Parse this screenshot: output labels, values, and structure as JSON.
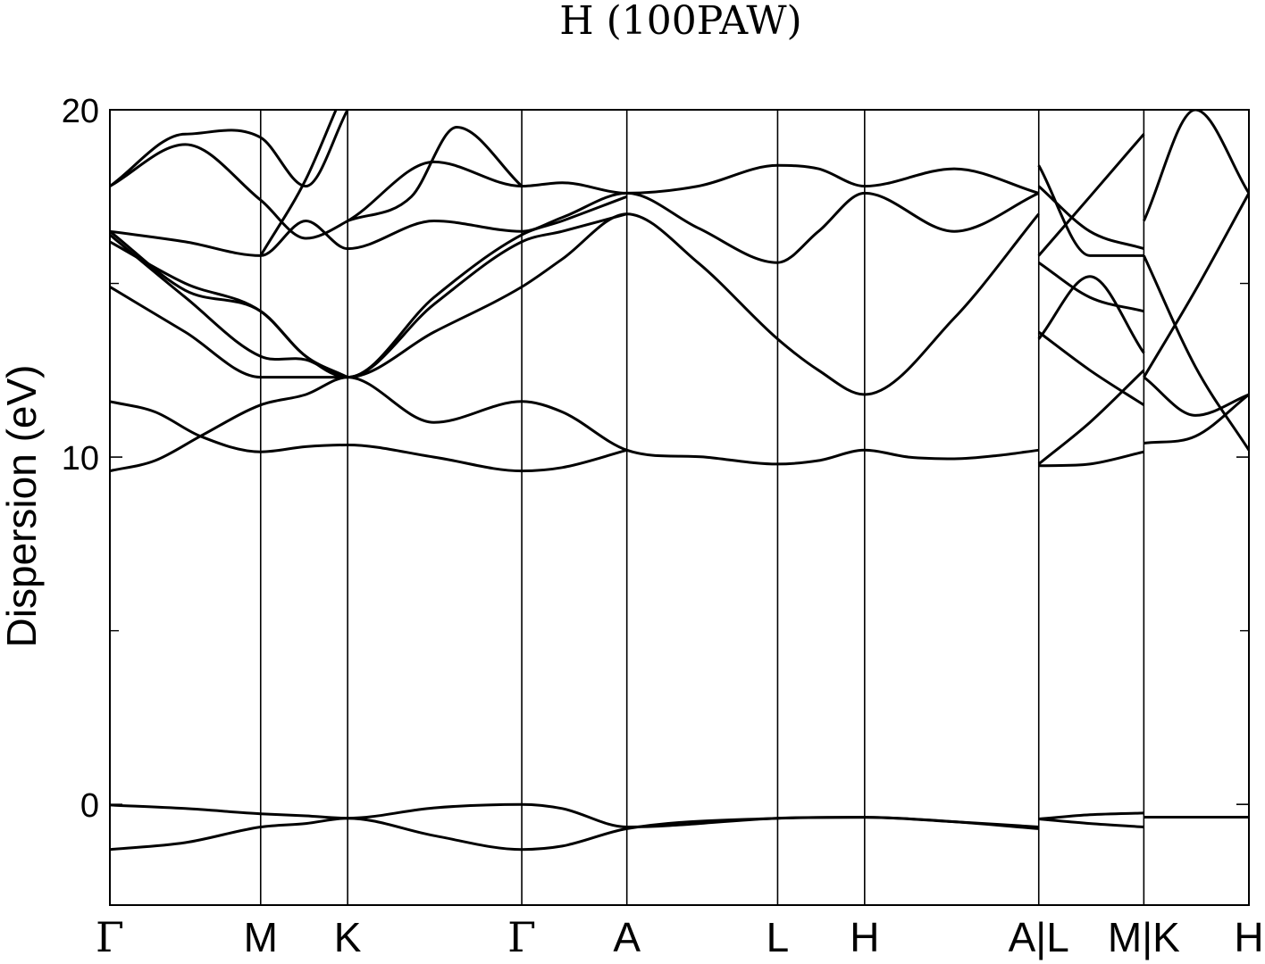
{
  "chart_data": {
    "type": "line",
    "title": "H (100PAW)",
    "ylabel": "Dispersion (eV)",
    "ylim": [
      -2.9,
      20
    ],
    "yticks": [
      0,
      10,
      20
    ],
    "yminor_ticks": [
      5,
      15
    ],
    "grid": false,
    "legend": "none",
    "kpoints": [
      {
        "label": "Γ",
        "x": 0.0
      },
      {
        "label": "M",
        "x": 1.0
      },
      {
        "label": "K",
        "x": 1.577
      },
      {
        "label": "Γ",
        "x": 2.732
      },
      {
        "label": "A",
        "x": 3.429
      },
      {
        "label": "L",
        "x": 4.429
      },
      {
        "label": "H",
        "x": 5.006
      },
      {
        "label": "A|L",
        "x": 6.161
      },
      {
        "label": "M|K",
        "x": 6.858
      },
      {
        "label": "H",
        "x": 7.555
      }
    ],
    "series": [
      {
        "values": [
          [
            0.0,
            -0.02
          ],
          [
            0.5,
            -0.12
          ],
          [
            1.0,
            -0.27
          ],
          [
            1.3,
            -0.33
          ],
          [
            1.577,
            -0.4
          ],
          [
            2.15,
            -0.1
          ],
          [
            2.732,
            0.0
          ],
          [
            3.0,
            -0.12
          ],
          [
            3.429,
            -0.65
          ],
          [
            4.429,
            -0.4
          ],
          [
            5.006,
            -0.37
          ],
          [
            5.6,
            -0.5
          ],
          [
            6.161,
            -0.65
          ]
        ]
      },
      {
        "values": [
          [
            0.0,
            -1.3
          ],
          [
            0.5,
            -1.1
          ],
          [
            1.0,
            -0.65
          ],
          [
            1.3,
            -0.55
          ],
          [
            1.577,
            -0.4
          ],
          [
            2.15,
            -0.9
          ],
          [
            2.732,
            -1.3
          ],
          [
            3.0,
            -1.2
          ],
          [
            3.429,
            -0.7
          ],
          [
            4.429,
            -0.4
          ],
          [
            5.006,
            -0.37
          ],
          [
            5.6,
            -0.5
          ],
          [
            6.161,
            -0.7
          ]
        ]
      },
      {
        "values": [
          [
            6.161,
            -0.42
          ],
          [
            6.5,
            -0.3
          ],
          [
            6.858,
            -0.25
          ]
        ]
      },
      {
        "values": [
          [
            6.161,
            -0.42
          ],
          [
            6.5,
            -0.55
          ],
          [
            6.858,
            -0.65
          ]
        ]
      },
      {
        "values": [
          [
            6.858,
            -0.37
          ],
          [
            7.555,
            -0.37
          ]
        ]
      },
      {
        "values": [
          [
            0.0,
            9.6
          ],
          [
            0.3,
            9.9
          ],
          [
            0.6,
            10.6
          ],
          [
            1.0,
            11.5
          ],
          [
            1.3,
            11.8
          ],
          [
            1.577,
            12.3
          ],
          [
            2.15,
            11.0
          ],
          [
            2.732,
            11.6
          ],
          [
            3.0,
            11.3
          ],
          [
            3.429,
            10.2
          ],
          [
            3.95,
            10.0
          ],
          [
            4.429,
            9.8
          ],
          [
            4.7,
            9.9
          ],
          [
            5.006,
            10.2
          ],
          [
            5.3,
            10.0
          ],
          [
            5.6,
            9.95
          ],
          [
            5.9,
            10.05
          ],
          [
            6.161,
            10.2
          ]
        ]
      },
      {
        "values": [
          [
            0.0,
            11.6
          ],
          [
            0.3,
            11.3
          ],
          [
            0.6,
            10.6
          ],
          [
            1.0,
            10.15
          ],
          [
            1.3,
            10.3
          ],
          [
            1.577,
            10.35
          ],
          [
            2.15,
            10.0
          ],
          [
            2.732,
            9.6
          ],
          [
            3.0,
            9.7
          ],
          [
            3.429,
            10.2
          ]
        ]
      },
      {
        "values": [
          [
            0.0,
            14.9
          ],
          [
            0.5,
            13.6
          ],
          [
            1.0,
            12.3
          ],
          [
            1.577,
            12.3
          ],
          [
            2.15,
            13.6
          ],
          [
            2.732,
            14.9
          ],
          [
            3.0,
            15.7
          ],
          [
            3.429,
            17.0
          ],
          [
            3.9,
            15.6
          ],
          [
            4.429,
            13.4
          ],
          [
            4.7,
            12.5
          ],
          [
            5.006,
            11.8
          ],
          [
            5.6,
            14.0
          ],
          [
            6.161,
            17.0
          ]
        ]
      },
      {
        "values": [
          [
            0.0,
            16.2
          ],
          [
            0.5,
            15.0
          ],
          [
            1.0,
            14.2
          ],
          [
            1.3,
            12.9
          ],
          [
            1.577,
            12.3
          ],
          [
            2.15,
            14.4
          ],
          [
            2.732,
            16.2
          ],
          [
            3.0,
            16.5
          ],
          [
            3.429,
            17.0
          ]
        ]
      },
      {
        "values": [
          [
            0.0,
            16.4
          ],
          [
            0.5,
            14.6
          ],
          [
            1.0,
            12.9
          ],
          [
            1.3,
            12.8
          ],
          [
            1.577,
            12.3
          ],
          [
            2.15,
            14.6
          ],
          [
            2.732,
            16.4
          ],
          [
            3.0,
            16.8
          ],
          [
            3.429,
            17.5
          ]
        ]
      },
      {
        "values": [
          [
            0.0,
            16.5
          ],
          [
            0.5,
            16.2
          ],
          [
            1.0,
            15.8
          ],
          [
            1.3,
            16.8
          ],
          [
            1.577,
            16.0
          ],
          [
            2.15,
            16.8
          ],
          [
            2.732,
            16.5
          ],
          [
            3.0,
            16.9
          ],
          [
            3.429,
            17.6
          ],
          [
            3.9,
            16.6
          ],
          [
            4.429,
            15.6
          ],
          [
            4.7,
            16.5
          ],
          [
            5.006,
            17.6
          ],
          [
            5.6,
            16.5
          ],
          [
            6.161,
            17.6
          ]
        ]
      },
      {
        "values": [
          [
            0.0,
            17.8
          ],
          [
            0.5,
            19.0
          ],
          [
            1.0,
            17.4
          ],
          [
            1.3,
            16.3
          ],
          [
            1.577,
            16.8
          ],
          [
            2.15,
            18.5
          ],
          [
            2.732,
            17.8
          ],
          [
            3.0,
            17.9
          ],
          [
            3.429,
            17.6
          ],
          [
            3.9,
            17.8
          ],
          [
            4.429,
            18.4
          ],
          [
            4.7,
            18.3
          ],
          [
            5.006,
            17.8
          ],
          [
            5.6,
            18.3
          ],
          [
            6.161,
            17.6
          ]
        ]
      },
      {
        "values": [
          [
            0.0,
            17.8
          ],
          [
            0.5,
            19.3
          ],
          [
            1.0,
            19.2
          ],
          [
            1.3,
            17.8
          ],
          [
            1.577,
            20.0
          ]
        ]
      },
      {
        "values": [
          [
            0.0,
            16.5
          ],
          [
            0.5,
            14.8
          ],
          [
            1.0,
            14.2
          ],
          [
            1.3,
            12.9
          ],
          [
            1.577,
            12.3
          ]
        ]
      },
      {
        "values": [
          [
            1.0,
            15.8
          ],
          [
            1.3,
            18.0
          ],
          [
            1.5,
            20.0
          ]
        ]
      },
      {
        "values": [
          [
            1.577,
            16.8
          ],
          [
            2.0,
            17.5
          ],
          [
            2.3,
            19.5
          ],
          [
            2.732,
            17.8
          ]
        ]
      },
      {
        "values": [
          [
            6.161,
            18.4
          ],
          [
            6.5,
            15.8
          ],
          [
            6.858,
            15.8
          ]
        ]
      },
      {
        "values": [
          [
            6.161,
            17.8
          ],
          [
            6.5,
            16.5
          ],
          [
            6.858,
            16.0
          ]
        ]
      },
      {
        "values": [
          [
            6.161,
            15.8
          ],
          [
            6.5,
            17.5
          ],
          [
            6.858,
            19.3
          ]
        ]
      },
      {
        "values": [
          [
            6.161,
            15.6
          ],
          [
            6.5,
            14.6
          ],
          [
            6.858,
            14.2
          ]
        ]
      },
      {
        "values": [
          [
            6.161,
            13.4
          ],
          [
            6.5,
            15.2
          ],
          [
            6.858,
            13.0
          ]
        ]
      },
      {
        "values": [
          [
            6.161,
            13.6
          ],
          [
            6.5,
            12.5
          ],
          [
            6.858,
            11.5
          ]
        ]
      },
      {
        "values": [
          [
            6.161,
            9.8
          ],
          [
            6.5,
            11.0
          ],
          [
            6.858,
            12.5
          ]
        ]
      },
      {
        "values": [
          [
            6.161,
            9.75
          ],
          [
            6.5,
            9.8
          ],
          [
            6.858,
            10.15
          ]
        ]
      },
      {
        "values": [
          [
            6.858,
            10.4
          ],
          [
            7.2,
            10.6
          ],
          [
            7.555,
            11.8
          ]
        ]
      },
      {
        "values": [
          [
            6.858,
            12.3
          ],
          [
            7.2,
            14.8
          ],
          [
            7.555,
            17.6
          ]
        ]
      },
      {
        "values": [
          [
            6.858,
            16.8
          ],
          [
            7.2,
            20.0
          ],
          [
            7.555,
            17.6
          ]
        ]
      },
      {
        "values": [
          [
            6.858,
            15.8
          ],
          [
            7.2,
            12.6
          ],
          [
            7.555,
            10.2
          ]
        ]
      },
      {
        "values": [
          [
            6.858,
            12.3
          ],
          [
            7.2,
            11.2
          ],
          [
            7.555,
            11.8
          ]
        ]
      }
    ]
  }
}
